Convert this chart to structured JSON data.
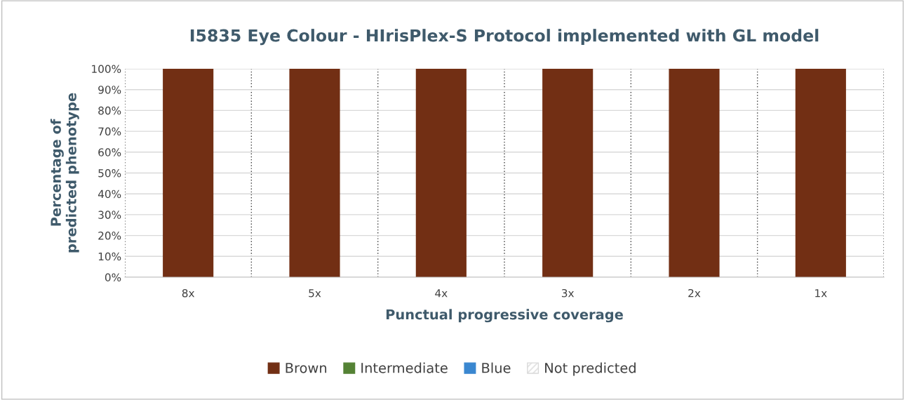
{
  "chart_data": {
    "type": "bar",
    "stacked": true,
    "title": "I5835 Eye Colour - HIrisPlex-S Protocol implemented with GL model",
    "xlabel": "Punctual progressive coverage",
    "ylabel": "Percentage of\npredicted phenotype",
    "categories": [
      "8x",
      "5x",
      "4x",
      "3x",
      "2x",
      "1x"
    ],
    "series": [
      {
        "name": "Brown",
        "color": "#722f14",
        "values": [
          100,
          100,
          100,
          100,
          100,
          100
        ]
      },
      {
        "name": "Intermediate",
        "color": "#548235",
        "values": [
          0,
          0,
          0,
          0,
          0,
          0
        ]
      },
      {
        "name": "Blue",
        "color": "#3a87d0",
        "values": [
          0,
          0,
          0,
          0,
          0,
          0
        ]
      },
      {
        "name": "Not predicted",
        "color": "#d9d9d9",
        "values": [
          0,
          0,
          0,
          0,
          0,
          0
        ]
      }
    ],
    "ylim": [
      0,
      100
    ],
    "yticks": [
      {
        "value": 0,
        "label": "0%"
      },
      {
        "value": 10,
        "label": "10%"
      },
      {
        "value": 20,
        "label": "20%"
      },
      {
        "value": 30,
        "label": "30%"
      },
      {
        "value": 40,
        "label": "40%"
      },
      {
        "value": 50,
        "label": "50%"
      },
      {
        "value": 60,
        "label": "60%"
      },
      {
        "value": 70,
        "label": "70%"
      },
      {
        "value": 80,
        "label": "80%"
      },
      {
        "value": 90,
        "label": "90%"
      },
      {
        "value": 100,
        "label": "100%"
      }
    ],
    "grid": true,
    "legend": "bottom"
  }
}
